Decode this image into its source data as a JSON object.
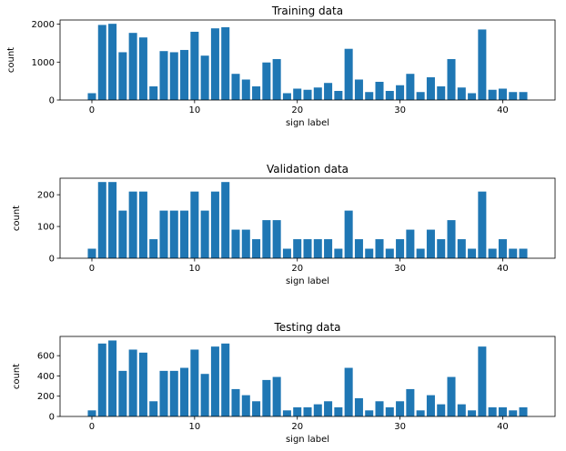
{
  "chart_data": [
    {
      "type": "bar",
      "title": "Training data",
      "xlabel": "sign label",
      "ylabel": "count",
      "xlim": [
        -3.1,
        45.1
      ],
      "ylim": [
        0,
        2110
      ],
      "xticks": [
        0,
        10,
        20,
        30,
        40
      ],
      "yticks": [
        0,
        1000,
        2000
      ],
      "color": "#1f77b4",
      "x": [
        0,
        1,
        2,
        3,
        4,
        5,
        6,
        7,
        8,
        9,
        10,
        11,
        12,
        13,
        14,
        15,
        16,
        17,
        18,
        19,
        20,
        21,
        22,
        23,
        24,
        25,
        26,
        27,
        28,
        29,
        30,
        31,
        32,
        33,
        34,
        35,
        36,
        37,
        38,
        39,
        40,
        41,
        42
      ],
      "values": [
        180,
        1980,
        2010,
        1260,
        1770,
        1650,
        360,
        1290,
        1260,
        1320,
        1800,
        1170,
        1890,
        1920,
        690,
        540,
        360,
        990,
        1080,
        180,
        300,
        270,
        330,
        450,
        240,
        1350,
        540,
        210,
        480,
        240,
        390,
        690,
        210,
        600,
        360,
        1080,
        330,
        180,
        1860,
        270,
        300,
        210,
        210
      ]
    },
    {
      "type": "bar",
      "title": "Validation data",
      "xlabel": "sign label",
      "ylabel": "count",
      "xlim": [
        -3.1,
        45.1
      ],
      "ylim": [
        0,
        252
      ],
      "xticks": [
        0,
        10,
        20,
        30,
        40
      ],
      "yticks": [
        0,
        100,
        200
      ],
      "color": "#1f77b4",
      "x": [
        0,
        1,
        2,
        3,
        4,
        5,
        6,
        7,
        8,
        9,
        10,
        11,
        12,
        13,
        14,
        15,
        16,
        17,
        18,
        19,
        20,
        21,
        22,
        23,
        24,
        25,
        26,
        27,
        28,
        29,
        30,
        31,
        32,
        33,
        34,
        35,
        36,
        37,
        38,
        39,
        40,
        41,
        42
      ],
      "values": [
        30,
        240,
        240,
        150,
        210,
        210,
        60,
        150,
        150,
        150,
        210,
        150,
        210,
        240,
        90,
        90,
        60,
        120,
        120,
        30,
        60,
        60,
        60,
        60,
        30,
        150,
        60,
        30,
        60,
        30,
        60,
        90,
        30,
        90,
        60,
        120,
        60,
        30,
        210,
        30,
        60,
        30,
        30
      ]
    },
    {
      "type": "bar",
      "title": "Testing data",
      "xlabel": "sign label",
      "ylabel": "count",
      "xlim": [
        -3.1,
        45.1
      ],
      "ylim": [
        0,
        790
      ],
      "xticks": [
        0,
        10,
        20,
        30,
        40
      ],
      "yticks": [
        0,
        200,
        400,
        600
      ],
      "color": "#1f77b4",
      "x": [
        0,
        1,
        2,
        3,
        4,
        5,
        6,
        7,
        8,
        9,
        10,
        11,
        12,
        13,
        14,
        15,
        16,
        17,
        18,
        19,
        20,
        21,
        22,
        23,
        24,
        25,
        26,
        27,
        28,
        29,
        30,
        31,
        32,
        33,
        34,
        35,
        36,
        37,
        38,
        39,
        40,
        41,
        42
      ],
      "values": [
        60,
        720,
        750,
        450,
        660,
        630,
        150,
        450,
        450,
        480,
        660,
        420,
        690,
        720,
        270,
        210,
        150,
        360,
        390,
        60,
        90,
        90,
        120,
        150,
        90,
        480,
        180,
        60,
        150,
        90,
        150,
        270,
        60,
        210,
        120,
        390,
        120,
        60,
        690,
        90,
        90,
        60,
        90
      ]
    }
  ]
}
